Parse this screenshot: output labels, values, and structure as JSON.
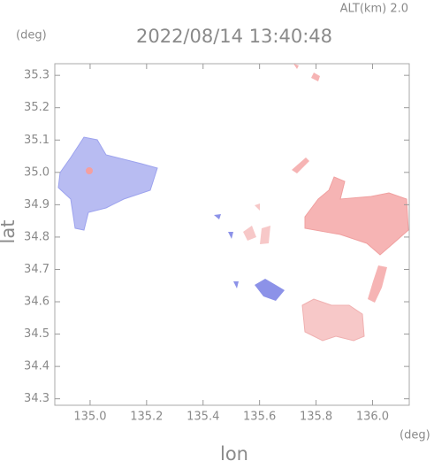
{
  "chart_data": {
    "type": "map",
    "title": "2022/08/14 13:40:48",
    "altitude_label": "ALT(km) 2.0",
    "y_unit": "(deg)",
    "x_unit": "(deg)",
    "xlabel": "lon",
    "ylabel": "lat",
    "xlim": [
      134.875,
      136.13
    ],
    "ylim": [
      34.28,
      35.336
    ],
    "xticks": [
      {
        "value": 135.0,
        "label": "135.0"
      },
      135.2,
      135.4,
      135.6,
      135.8,
      {
        "value": 136.0,
        "label": "136.0"
      }
    ],
    "yticks": [
      34.3,
      34.4,
      34.5,
      34.6,
      34.7,
      34.8,
      34.9,
      {
        "value": 35.0,
        "label": "35.0"
      },
      35.1,
      35.2,
      35.3
    ]
  }
}
